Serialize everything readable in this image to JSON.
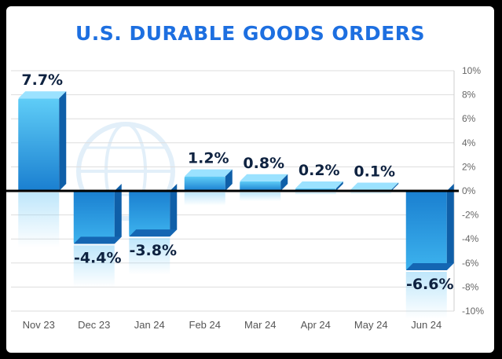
{
  "chart_data": {
    "type": "bar",
    "title": "U.S. DURABLE GOODS ORDERS",
    "categories": [
      "Nov 23",
      "Dec 23",
      "Jan 24",
      "Feb 24",
      "Mar 24",
      "Apr 24",
      "May 24",
      "Jun 24"
    ],
    "values": [
      7.7,
      -4.4,
      -3.8,
      1.2,
      0.8,
      0.2,
      0.1,
      -6.6
    ],
    "data_labels": [
      "7.7%",
      "-4.4%",
      "-3.8%",
      "1.2%",
      "0.8%",
      "0.2%",
      "0.1%",
      "-6.6%"
    ],
    "y_ticks": [
      10,
      8,
      6,
      4,
      2,
      0,
      -2,
      -4,
      -6,
      -8,
      -10
    ],
    "y_tick_labels": [
      "10%",
      "8%",
      "6%",
      "4%",
      "2%",
      "0%",
      "-2%",
      "-4%",
      "-6%",
      "-8%",
      "-10%"
    ],
    "ylim": [
      -10,
      10
    ],
    "y_axis_position": "right",
    "grid": true,
    "legend": false,
    "colors": {
      "title": "#1d6fe0",
      "bar_front_top": "#4fc4f5",
      "bar_front_bottom": "#1b7fcf",
      "bar_side": "#0f5fa8",
      "bar_top": "#9be2ff",
      "zero_line": "#000000",
      "grid": "#dddddd"
    }
  }
}
